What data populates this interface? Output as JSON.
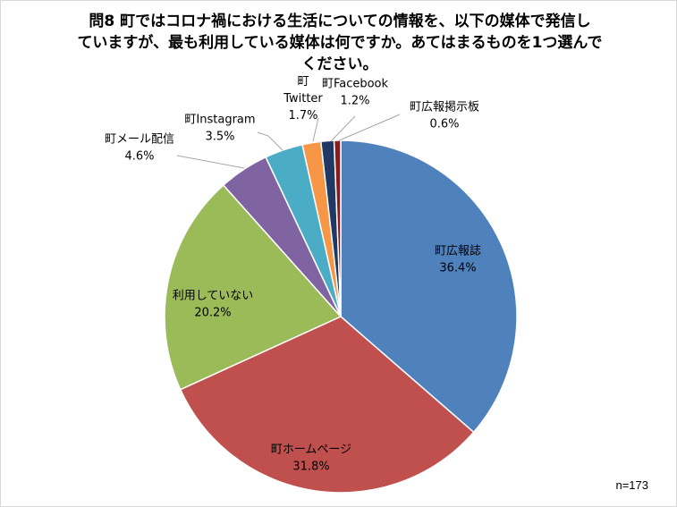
{
  "chart_data": {
    "type": "pie",
    "title_lines": [
      "問8  町ではコロナ禍における生活についての情報を、以下の媒体で発信し",
      "ていますが、最も利用している媒体は何ですか。あてはまるものを1つ選んで",
      "ください。"
    ],
    "slices": [
      {
        "label": "町広報誌",
        "value": 36.4,
        "value_label": "36.4%",
        "color": "#4F81BD"
      },
      {
        "label": "町ホームページ",
        "value": 31.8,
        "value_label": "31.8%",
        "color": "#C0504D"
      },
      {
        "label": "利用していない",
        "value": 20.2,
        "value_label": "20.2%",
        "color": "#9BBB59"
      },
      {
        "label": "町メール配信",
        "value": 4.6,
        "value_label": "4.6%",
        "color": "#8064A2"
      },
      {
        "label": "町Instagram",
        "value": 3.5,
        "value_label": "3.5%",
        "color": "#4BACC6"
      },
      {
        "label": "町\nTwitter",
        "value": 1.7,
        "value_label": "1.7%",
        "color": "#F79646"
      },
      {
        "label": "町Facebook",
        "value": 1.2,
        "value_label": "1.2%",
        "color": "#1F3864"
      },
      {
        "label": "町広報掲示板",
        "value": 0.6,
        "value_label": "0.6%",
        "color": "#8B1A1A"
      }
    ],
    "note": "n=173",
    "start": "12 o'clock",
    "direction": "clockwise"
  }
}
